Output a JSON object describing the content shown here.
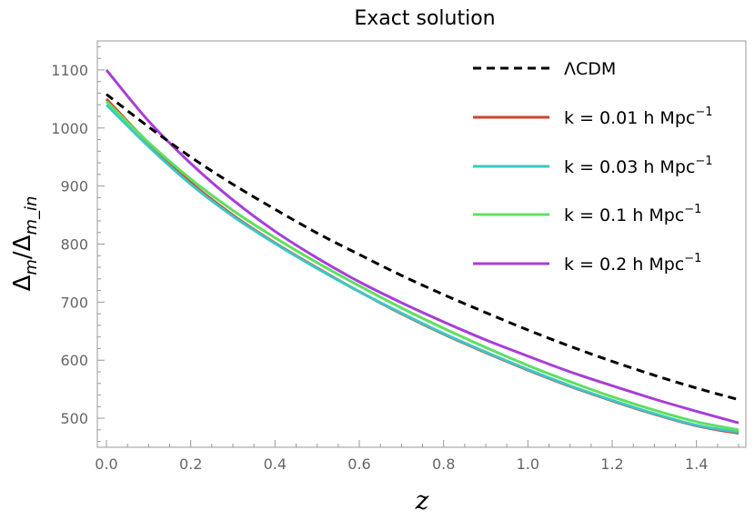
{
  "chart_data": {
    "type": "line",
    "title": "Exact solution",
    "xlabel": "z",
    "ylabel": {
      "main": "Δ",
      "sub1": "m",
      "slash": "/Δ",
      "sub2": "m_in"
    },
    "xlim": [
      0,
      1.5
    ],
    "ylim": [
      450,
      1150
    ],
    "xticks": [
      0.0,
      0.2,
      0.4,
      0.6,
      0.8,
      1.0,
      1.2,
      1.4
    ],
    "xtick_labels": [
      "0.0",
      "0.2",
      "0.4",
      "0.6",
      "0.8",
      "1.0",
      "1.2",
      "1.4"
    ],
    "yticks": [
      500,
      600,
      700,
      800,
      900,
      1000,
      1100
    ],
    "ytick_labels": [
      "500",
      "600",
      "700",
      "800",
      "900",
      "1000",
      "1100"
    ],
    "grid": false,
    "legend_position": "top-right",
    "series": [
      {
        "name": "ΛCDM",
        "sup": "",
        "color": "#000000",
        "dashed": true,
        "x": [
          0.0,
          0.1,
          0.2,
          0.3,
          0.4,
          0.5,
          0.6,
          0.7,
          0.8,
          0.9,
          1.0,
          1.1,
          1.2,
          1.3,
          1.4,
          1.5
        ],
        "y": [
          1058,
          1002,
          950,
          903,
          860,
          819,
          782,
          746,
          713,
          682,
          652,
          624,
          598,
          574,
          552,
          532
        ]
      },
      {
        "name": "k = 0.01 h Mpc",
        "sup": "−1",
        "color": "#cc4433",
        "dashed": false,
        "x": [
          0.0,
          0.1,
          0.2,
          0.3,
          0.4,
          0.5,
          0.6,
          0.7,
          0.8,
          0.9,
          1.0,
          1.1,
          1.2,
          1.3,
          1.4,
          1.5
        ],
        "y": [
          1050,
          974,
          906,
          850,
          802,
          759,
          718,
          680,
          645,
          613,
          583,
          555,
          530,
          507,
          487,
          474
        ]
      },
      {
        "name": "k = 0.03 h Mpc",
        "sup": "−1",
        "color": "#3cc7c7",
        "dashed": false,
        "x": [
          0.0,
          0.1,
          0.2,
          0.3,
          0.4,
          0.5,
          0.6,
          0.7,
          0.8,
          0.9,
          1.0,
          1.1,
          1.2,
          1.3,
          1.4,
          1.5
        ],
        "y": [
          1040,
          968,
          903,
          848,
          801,
          758,
          718,
          681,
          646,
          614,
          584,
          556,
          531,
          508,
          488,
          476
        ]
      },
      {
        "name": "k = 0.1 h Mpc",
        "sup": "−1",
        "color": "#5ee05e",
        "dashed": false,
        "x": [
          0.0,
          0.1,
          0.2,
          0.3,
          0.4,
          0.5,
          0.6,
          0.7,
          0.8,
          0.9,
          1.0,
          1.1,
          1.2,
          1.3,
          1.4,
          1.5
        ],
        "y": [
          1046,
          975,
          912,
          858,
          811,
          768,
          728,
          690,
          655,
          622,
          591,
          563,
          537,
          514,
          494,
          480
        ]
      },
      {
        "name": "k = 0.2 h Mpc",
        "sup": "−1",
        "color": "#a83ed8",
        "dashed": false,
        "x": [
          0.0,
          0.1,
          0.2,
          0.3,
          0.4,
          0.5,
          0.6,
          0.7,
          0.8,
          0.9,
          1.0,
          1.1,
          1.2,
          1.3,
          1.4,
          1.5
        ],
        "y": [
          1100,
          1012,
          939,
          876,
          822,
          776,
          735,
          699,
          666,
          635,
          607,
          580,
          556,
          533,
          512,
          492
        ]
      }
    ]
  }
}
